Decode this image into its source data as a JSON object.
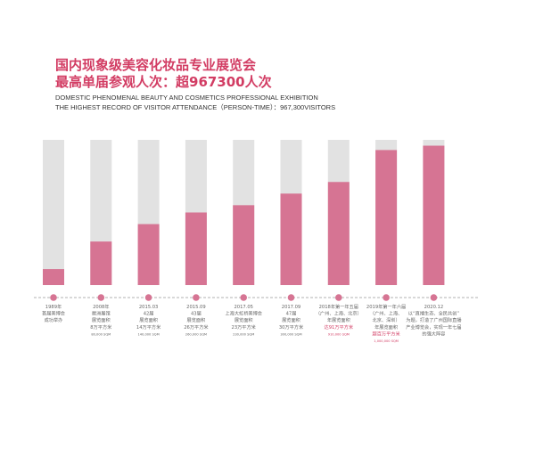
{
  "header": {
    "title_line1": "国内现象级美容化妆品专业展览会",
    "title_line2": "最高单届参观人次：超967300人次",
    "subtitle_line1": "DOMESTIC PHENOMENAL BEAUTY AND COSMETICS PROFESSIONAL EXHIBITION",
    "subtitle_line2": "THE HIGHEST RECORD OF VISITOR ATTENDANCE（PERSON-TIME）：967,300VISITORS"
  },
  "colors": {
    "bar_fill": "#d67493",
    "bar_background": "#e2e2e2",
    "accent": "#d23c63",
    "timeline_dot": "#d67493",
    "timeline_line": "#999999",
    "text": "#666666"
  },
  "chart_data": {
    "type": "bar",
    "ylim": [
      0,
      1
    ],
    "categories": [
      "1989年",
      "2008年",
      "2015.03",
      "2015.09",
      "2017.05",
      "2017.09",
      "2018年第一年五届",
      "2019年第一年六届",
      "2020.12"
    ],
    "values": [
      0.11,
      0.3,
      0.42,
      0.5,
      0.55,
      0.63,
      0.71,
      0.93,
      0.96
    ],
    "timeline": [
      {
        "lines": [
          {
            "t": "1989年"
          },
          {
            "t": "首届美博会"
          },
          {
            "t": "成功举办"
          }
        ]
      },
      {
        "lines": [
          {
            "t": "2008年"
          },
          {
            "t": "琶洲展馆"
          },
          {
            "t": "展览面积"
          },
          {
            "t": "8万平方米"
          },
          {
            "t": "80,000 SQM",
            "s": true
          }
        ]
      },
      {
        "lines": [
          {
            "t": "2015.03"
          },
          {
            "t": "42届"
          },
          {
            "t": "展览面积"
          },
          {
            "t": "14万平方米"
          },
          {
            "t": "140,000 SQM",
            "s": true
          }
        ]
      },
      {
        "lines": [
          {
            "t": "2015.09"
          },
          {
            "t": "43届"
          },
          {
            "t": "展览面积"
          },
          {
            "t": "26万平方米"
          },
          {
            "t": "260,000 SQM",
            "s": true
          }
        ]
      },
      {
        "lines": [
          {
            "t": "2017.05"
          },
          {
            "t": "上海大虹桥美博会"
          },
          {
            "t": "展览面积"
          },
          {
            "t": "23万平方米"
          },
          {
            "t": "230,000 SQM",
            "s": true
          }
        ]
      },
      {
        "lines": [
          {
            "t": "2017.09"
          },
          {
            "t": "47届"
          },
          {
            "t": "展览面积"
          },
          {
            "t": "30万平方米"
          },
          {
            "t": "300,000 SQM",
            "s": true
          }
        ]
      },
      {
        "lines": [
          {
            "t": "2018年第一年五届"
          },
          {
            "t": "（广州、上海、北京）"
          },
          {
            "t": "年展览面积"
          },
          {
            "t": "达91万平方米",
            "r": true
          },
          {
            "t": "910,000 SQM",
            "s": true,
            "r": true
          }
        ]
      },
      {
        "lines": [
          {
            "t": "2019年第一年六届"
          },
          {
            "t": "（广州、上海、"
          },
          {
            "t": "北京、深圳）"
          },
          {
            "t": "年展览面积"
          },
          {
            "t": "超百万平方米",
            "r": true
          },
          {
            "t": "1,000,000 SQM",
            "s": true,
            "r": true
          }
        ]
      },
      {
        "lines": [
          {
            "t": "2020.12"
          },
          {
            "t": "以“直播生态、全民共创”"
          },
          {
            "t": "为题，打造了广州国际直播"
          },
          {
            "t": "产业博览会，实现一年七届"
          },
          {
            "t": "的强大阵容"
          }
        ]
      }
    ]
  }
}
